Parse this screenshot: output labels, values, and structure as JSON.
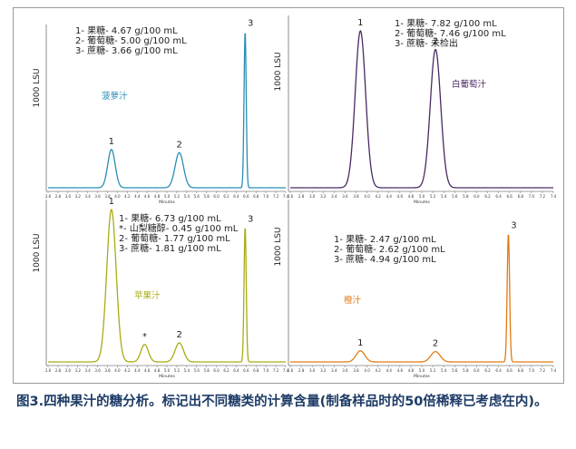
{
  "chart_data": [
    {
      "type": "line",
      "juice_label": "菠萝汁",
      "ylabel": "1000 LSU",
      "xlabel": "Minutes",
      "color": "#2a8db5",
      "xlim": [
        2.6,
        7.4
      ],
      "tick_labels": [
        "2.6",
        "2.8",
        "3.0",
        "3.2",
        "3.4",
        "3.6",
        "3.8",
        "4.0",
        "4.2",
        "4.4",
        "4.6",
        "4.8",
        "5.0",
        "5.2",
        "5.4",
        "5.6",
        "5.8",
        "6.0",
        "6.2",
        "6.4",
        "6.6",
        "6.8",
        "7.0",
        "7.2",
        "7.4"
      ],
      "legend": [
        "1- 果糖- 4.67 g/100 mL",
        "2- 葡萄糖- 5.00 g/100 mL",
        "3- 蔗糖- 3.66 g/100 mL"
      ],
      "peaks": [
        {
          "label": "1",
          "x": 3.88,
          "height": 0.24,
          "width": 0.075
        },
        {
          "label": "2",
          "x": 5.25,
          "height": 0.22,
          "width": 0.085
        },
        {
          "label": "3",
          "x": 6.58,
          "height": 0.98,
          "width": 0.022
        }
      ]
    },
    {
      "type": "line",
      "juice_label": "白葡萄汁",
      "ylabel": "1000 LSU",
      "xlabel": "Minutes",
      "color": "#4a2a63",
      "xlim": [
        2.6,
        7.4
      ],
      "tick_labels": [
        "2.6",
        "2.8",
        "3.0",
        "3.2",
        "3.4",
        "3.6",
        "3.8",
        "4.0",
        "4.2",
        "4.4",
        "4.6",
        "4.8",
        "5.0",
        "5.2",
        "5.4",
        "5.6",
        "5.8",
        "6.0",
        "6.2",
        "6.4",
        "6.6",
        "6.8",
        "7.0",
        "7.2",
        "7.4"
      ],
      "legend": [
        "1- 果糖- 7.82 g/100 mL",
        "2- 葡萄糖- 7.46 g/100 mL",
        "3- 蔗糖- 未检出"
      ],
      "peaks": [
        {
          "label": "1",
          "x": 3.88,
          "height": 0.93,
          "width": 0.095
        },
        {
          "label": "2",
          "x": 5.25,
          "height": 0.82,
          "width": 0.095
        }
      ]
    },
    {
      "type": "line",
      "juice_label": "苹果汁",
      "ylabel": "1000 LSU",
      "xlabel": "Minutes",
      "color": "#a8ad12",
      "xlim": [
        2.6,
        7.4
      ],
      "tick_labels": [
        "2.6",
        "2.8",
        "3.0",
        "3.2",
        "3.4",
        "3.6",
        "3.8",
        "4.0",
        "4.2",
        "4.4",
        "4.6",
        "4.8",
        "5.0",
        "5.2",
        "5.4",
        "5.6",
        "5.8",
        "6.0",
        "6.2",
        "6.4",
        "6.6",
        "6.8",
        "7.0",
        "7.2",
        "7.4"
      ],
      "legend": [
        "1- 果糖- 6.73 g/100 mL",
        "*- 山梨糖醇- 0.45 g/100 mL",
        "2- 葡萄糖- 1.77 g/100 mL",
        "3- 蔗糖- 1.81 g/100 mL"
      ],
      "peaks": [
        {
          "label": "1",
          "x": 3.88,
          "height": 0.96,
          "width": 0.095
        },
        {
          "label": "*",
          "x": 4.55,
          "height": 0.11,
          "width": 0.075
        },
        {
          "label": "2",
          "x": 5.25,
          "height": 0.12,
          "width": 0.085
        },
        {
          "label": "3",
          "x": 6.58,
          "height": 0.85,
          "width": 0.022
        }
      ]
    },
    {
      "type": "line",
      "juice_label": "橙汁",
      "ylabel": "1000 LSU",
      "xlabel": "Minutes",
      "color": "#e07b14",
      "xlim": [
        2.6,
        7.4
      ],
      "tick_labels": [
        "2.6",
        "2.8",
        "3.0",
        "3.2",
        "3.4",
        "3.6",
        "3.8",
        "4.0",
        "4.2",
        "4.4",
        "4.6",
        "4.8",
        "5.0",
        "5.2",
        "5.4",
        "5.6",
        "5.8",
        "6.0",
        "6.2",
        "6.4",
        "6.6",
        "6.8",
        "7.0",
        "7.2",
        "7.4"
      ],
      "legend": [
        "1- 果糖- 2.47 g/100 mL",
        "2- 葡萄糖- 2.62 g/100 mL",
        "3- 蔗糖- 4.94 g/100 mL"
      ],
      "peaks": [
        {
          "label": "1",
          "x": 3.88,
          "height": 0.07,
          "width": 0.08
        },
        {
          "label": "2",
          "x": 5.25,
          "height": 0.065,
          "width": 0.085
        },
        {
          "label": "3",
          "x": 6.58,
          "height": 0.81,
          "width": 0.022
        }
      ]
    }
  ],
  "caption": "图3.四种果汁的糖分析。标记出不同糖类的计算含量(制备样品时的50倍稀释已考虑在内)。"
}
